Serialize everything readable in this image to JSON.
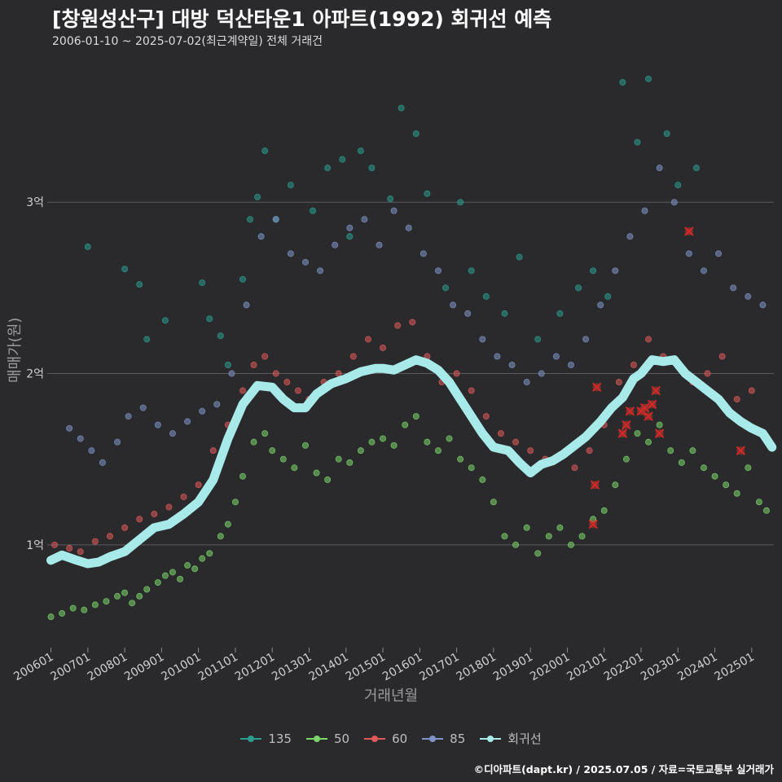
{
  "title": "[창원성산구] 대방 덕산타운1 아파트(1992) 회귀선 예측",
  "subtitle": "2006-01-10 ~ 2025-07-02(최근계약일) 전체 거래건",
  "caption": "©디아파트(dapt.kr) / 2025.07.05 / 자료=국토교통부 실거래가",
  "chart_data": {
    "type": "scatter",
    "title": "[창원성산구] 대방 덕산타운1 아파트(1992) 회귀선 예측",
    "xlabel": "거래년월",
    "ylabel": "매매가(원)",
    "x_range": [
      2005.9,
      2025.6
    ],
    "y_range_eok": [
      0.4,
      3.8
    ],
    "x_ticks": [
      {
        "label": "200601",
        "value": 2006.0
      },
      {
        "label": "200701",
        "value": 2007.0
      },
      {
        "label": "200801",
        "value": 2008.0
      },
      {
        "label": "200901",
        "value": 2009.0
      },
      {
        "label": "201001",
        "value": 2010.0
      },
      {
        "label": "201101",
        "value": 2011.0
      },
      {
        "label": "201201",
        "value": 2012.0
      },
      {
        "label": "201301",
        "value": 2013.0
      },
      {
        "label": "201401",
        "value": 2014.0
      },
      {
        "label": "201501",
        "value": 2015.0
      },
      {
        "label": "201601",
        "value": 2016.0
      },
      {
        "label": "201701",
        "value": 2017.0
      },
      {
        "label": "201801",
        "value": 2018.0
      },
      {
        "label": "201901",
        "value": 2019.0
      },
      {
        "label": "202001",
        "value": 2020.0
      },
      {
        "label": "202101",
        "value": 2021.0
      },
      {
        "label": "202201",
        "value": 2022.0
      },
      {
        "label": "202301",
        "value": 2023.0
      },
      {
        "label": "202401",
        "value": 2024.0
      },
      {
        "label": "202501",
        "value": 2025.0
      }
    ],
    "y_ticks": [
      {
        "label": "1억",
        "value": 1.0
      },
      {
        "label": "2억",
        "value": 2.0
      },
      {
        "label": "3억",
        "value": 3.0
      }
    ],
    "legend": [
      {
        "label": "135",
        "color": "#2a9d8f"
      },
      {
        "label": "50",
        "color": "#7bd66b"
      },
      {
        "label": "60",
        "color": "#e05a5a"
      },
      {
        "label": "85",
        "color": "#7f93c8"
      },
      {
        "label": "회귀선",
        "color": "#a8eaea"
      }
    ],
    "series": [
      {
        "name": "135",
        "color": "#2a9d8f",
        "x": [
          2007.0,
          2008.0,
          2008.4,
          2008.6,
          2009.1,
          2010.1,
          2010.3,
          2010.6,
          2010.8,
          2011.2,
          2011.4,
          2011.6,
          2011.8,
          2012.1,
          2012.5,
          2013.1,
          2013.5,
          2013.9,
          2014.1,
          2014.4,
          2014.7,
          2015.2,
          2015.5,
          2015.9,
          2016.2,
          2016.7,
          2017.1,
          2017.4,
          2017.8,
          2018.3,
          2018.7,
          2019.2,
          2019.8,
          2020.3,
          2020.7,
          2021.1,
          2021.5,
          2021.9,
          2022.2,
          2022.7,
          2023.0,
          2023.5
        ],
        "y": [
          2.74,
          2.61,
          2.52,
          2.2,
          2.31,
          2.53,
          2.32,
          2.22,
          2.05,
          2.55,
          2.9,
          3.03,
          3.3,
          2.9,
          3.1,
          2.95,
          3.2,
          3.25,
          2.8,
          3.3,
          3.2,
          3.02,
          3.55,
          3.4,
          3.05,
          2.5,
          3.0,
          2.6,
          2.45,
          2.35,
          2.68,
          2.2,
          2.35,
          2.5,
          2.6,
          2.45,
          3.7,
          3.35,
          3.72,
          3.4,
          3.1,
          3.2
        ]
      },
      {
        "name": "50",
        "color": "#7bd66b",
        "x": [
          2006.0,
          2006.3,
          2006.6,
          2006.9,
          2007.2,
          2007.5,
          2007.8,
          2008.0,
          2008.2,
          2008.4,
          2008.6,
          2008.9,
          2009.1,
          2009.3,
          2009.5,
          2009.7,
          2009.9,
          2010.1,
          2010.3,
          2010.6,
          2010.8,
          2011.0,
          2011.2,
          2011.5,
          2011.8,
          2012.0,
          2012.3,
          2012.6,
          2012.9,
          2013.2,
          2013.5,
          2013.8,
          2014.1,
          2014.4,
          2014.7,
          2015.0,
          2015.3,
          2015.6,
          2015.9,
          2016.2,
          2016.5,
          2016.8,
          2017.1,
          2017.4,
          2017.7,
          2018.0,
          2018.3,
          2018.6,
          2018.9,
          2019.2,
          2019.5,
          2019.8,
          2020.1,
          2020.4,
          2020.7,
          2021.0,
          2021.3,
          2021.6,
          2021.9,
          2022.2,
          2022.5,
          2022.8,
          2023.1,
          2023.4,
          2023.7,
          2024.0,
          2024.3,
          2024.6,
          2024.9,
          2025.2,
          2025.4
        ],
        "y": [
          0.58,
          0.6,
          0.63,
          0.62,
          0.65,
          0.67,
          0.7,
          0.72,
          0.66,
          0.7,
          0.74,
          0.78,
          0.82,
          0.84,
          0.8,
          0.88,
          0.86,
          0.92,
          0.95,
          1.05,
          1.12,
          1.25,
          1.4,
          1.6,
          1.65,
          1.55,
          1.5,
          1.45,
          1.58,
          1.42,
          1.38,
          1.5,
          1.48,
          1.55,
          1.6,
          1.62,
          1.58,
          1.7,
          1.75,
          1.6,
          1.55,
          1.62,
          1.5,
          1.45,
          1.38,
          1.25,
          1.05,
          1.0,
          1.1,
          0.95,
          1.05,
          1.1,
          1.0,
          1.05,
          1.15,
          1.2,
          1.35,
          1.5,
          1.65,
          1.6,
          1.7,
          1.55,
          1.48,
          1.55,
          1.45,
          1.4,
          1.35,
          1.3,
          1.45,
          1.25,
          1.2
        ]
      },
      {
        "name": "60",
        "color": "#e05a5a",
        "x": [
          2006.1,
          2006.5,
          2006.8,
          2007.2,
          2007.6,
          2008.0,
          2008.4,
          2008.8,
          2009.2,
          2009.6,
          2010.0,
          2010.4,
          2010.8,
          2011.2,
          2011.5,
          2011.8,
          2012.1,
          2012.4,
          2012.7,
          2013.0,
          2013.4,
          2013.8,
          2014.2,
          2014.6,
          2015.0,
          2015.4,
          2015.8,
          2016.2,
          2016.6,
          2017.0,
          2017.4,
          2017.8,
          2018.2,
          2018.6,
          2019.0,
          2019.4,
          2019.8,
          2020.2,
          2020.6,
          2021.0,
          2021.4,
          2021.8,
          2022.2,
          2022.6,
          2023.0,
          2023.4,
          2023.8,
          2024.2,
          2024.6,
          2025.0
        ],
        "y": [
          1.0,
          0.98,
          0.96,
          1.02,
          1.05,
          1.1,
          1.15,
          1.18,
          1.22,
          1.28,
          1.35,
          1.55,
          1.7,
          1.9,
          2.05,
          2.1,
          2.0,
          1.95,
          1.9,
          1.85,
          1.95,
          2.0,
          2.1,
          2.2,
          2.15,
          2.28,
          2.3,
          2.1,
          1.95,
          2.0,
          1.9,
          1.75,
          1.65,
          1.6,
          1.55,
          1.5,
          1.52,
          1.45,
          1.55,
          1.7,
          1.95,
          2.05,
          2.2,
          2.1,
          2.05,
          1.95,
          2.0,
          2.1,
          1.85,
          1.9
        ]
      },
      {
        "name": "85",
        "color": "#7f93c8",
        "x": [
          2006.5,
          2006.8,
          2007.1,
          2007.4,
          2007.8,
          2008.1,
          2008.5,
          2008.9,
          2009.3,
          2009.7,
          2010.1,
          2010.5,
          2010.9,
          2011.3,
          2011.7,
          2012.1,
          2012.5,
          2012.9,
          2013.3,
          2013.7,
          2014.1,
          2014.5,
          2014.9,
          2015.3,
          2015.7,
          2016.1,
          2016.5,
          2016.9,
          2017.3,
          2017.7,
          2018.1,
          2018.5,
          2018.9,
          2019.3,
          2019.7,
          2020.1,
          2020.5,
          2020.9,
          2021.3,
          2021.7,
          2022.1,
          2022.5,
          2022.9,
          2023.3,
          2023.7,
          2024.1,
          2024.5,
          2024.9,
          2025.3
        ],
        "y": [
          1.68,
          1.62,
          1.55,
          1.48,
          1.6,
          1.75,
          1.8,
          1.7,
          1.65,
          1.72,
          1.78,
          1.82,
          2.0,
          2.4,
          2.8,
          2.9,
          2.7,
          2.65,
          2.6,
          2.75,
          2.85,
          2.9,
          2.75,
          2.95,
          2.85,
          2.7,
          2.6,
          2.4,
          2.35,
          2.2,
          2.1,
          2.05,
          1.95,
          2.0,
          2.1,
          2.05,
          2.2,
          2.4,
          2.6,
          2.8,
          2.95,
          3.2,
          3.0,
          2.7,
          2.6,
          2.7,
          2.5,
          2.45,
          2.4
        ]
      },
      {
        "name": "회귀선",
        "color": "#a8eaea",
        "x": [
          2006.0,
          2006.3,
          2006.7,
          2007.0,
          2007.3,
          2007.6,
          2008.0,
          2008.4,
          2008.8,
          2009.2,
          2009.6,
          2010.0,
          2010.4,
          2010.8,
          2011.2,
          2011.6,
          2012.0,
          2012.3,
          2012.6,
          2012.9,
          2013.2,
          2013.6,
          2014.0,
          2014.4,
          2014.8,
          2015.0,
          2015.3,
          2015.6,
          2015.9,
          2016.2,
          2016.5,
          2016.8,
          2017.1,
          2017.4,
          2017.7,
          2018.0,
          2018.4,
          2018.7,
          2019.0,
          2019.3,
          2019.6,
          2019.9,
          2020.2,
          2020.5,
          2020.9,
          2021.2,
          2021.5,
          2021.8,
          2022.0,
          2022.3,
          2022.6,
          2022.9,
          2023.2,
          2023.5,
          2023.8,
          2024.1,
          2024.4,
          2024.7,
          2025.0,
          2025.3,
          2025.55
        ],
        "y": [
          0.91,
          0.94,
          0.91,
          0.89,
          0.9,
          0.93,
          0.96,
          1.03,
          1.1,
          1.12,
          1.18,
          1.25,
          1.38,
          1.62,
          1.82,
          1.93,
          1.92,
          1.85,
          1.8,
          1.8,
          1.88,
          1.94,
          1.97,
          2.01,
          2.03,
          2.03,
          2.02,
          2.05,
          2.08,
          2.06,
          2.02,
          1.95,
          1.85,
          1.75,
          1.65,
          1.57,
          1.55,
          1.48,
          1.42,
          1.47,
          1.49,
          1.53,
          1.58,
          1.63,
          1.72,
          1.8,
          1.86,
          1.97,
          2.0,
          2.08,
          2.07,
          2.08,
          2.0,
          1.95,
          1.9,
          1.85,
          1.77,
          1.72,
          1.68,
          1.65,
          1.57
        ]
      }
    ],
    "highlighted_recent": {
      "x": [
        2020.7,
        2020.75,
        2020.8,
        2021.5,
        2021.6,
        2021.7,
        2022.0,
        2022.1,
        2022.2,
        2022.3,
        2022.4,
        2022.5,
        2023.3,
        2024.7
      ],
      "y": [
        1.12,
        1.35,
        1.92,
        1.65,
        1.7,
        1.78,
        1.78,
        1.8,
        1.75,
        1.82,
        1.9,
        1.65,
        2.83,
        1.55
      ]
    }
  }
}
